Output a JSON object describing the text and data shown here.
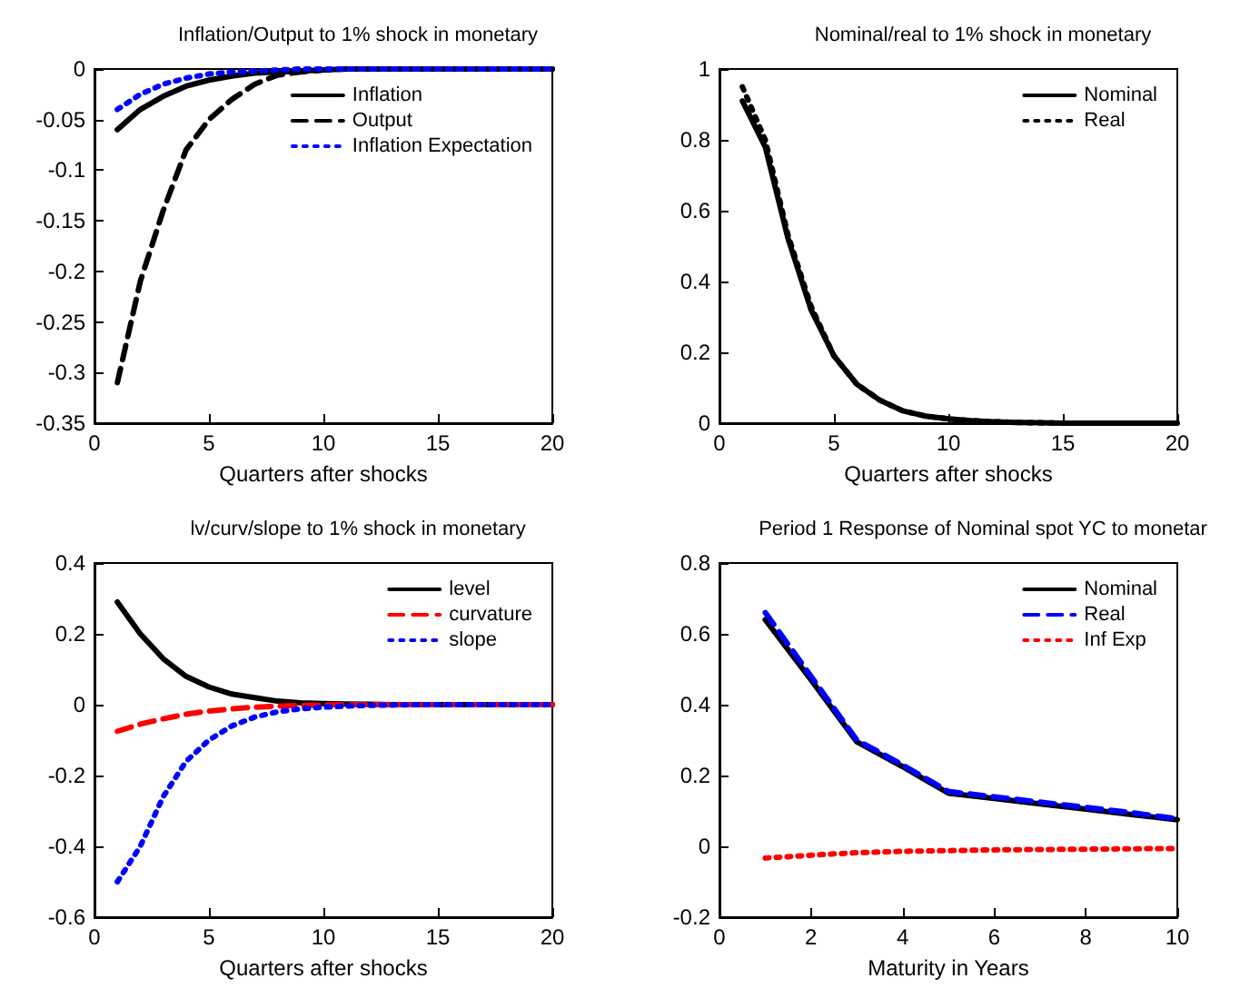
{
  "chart_data": [
    {
      "type": "line",
      "title": "Inflation/Output to 1% shock in monetary",
      "xlabel": "Quarters after shocks",
      "x": [
        1,
        2,
        3,
        4,
        5,
        6,
        7,
        8,
        9,
        10,
        11,
        12,
        13,
        14,
        15,
        16,
        17,
        18,
        19,
        20
      ],
      "xlim": [
        0,
        20
      ],
      "xticks": [
        0,
        5,
        10,
        15,
        20
      ],
      "ylim": [
        -0.35,
        0
      ],
      "yticks": [
        -0.35,
        -0.3,
        -0.25,
        -0.2,
        -0.15,
        -0.1,
        -0.05,
        0
      ],
      "grid": false,
      "legend": "top right",
      "marker": "none",
      "series": [
        {
          "name": "Inflation",
          "color": "#000000",
          "line_style": "solid",
          "values": [
            -0.06,
            -0.04,
            -0.027,
            -0.017,
            -0.011,
            -0.007,
            -0.004,
            -0.003,
            -0.002,
            -0.001,
            0,
            0,
            0,
            0,
            0,
            0,
            0,
            0,
            0,
            0
          ]
        },
        {
          "name": "Output",
          "color": "#000000",
          "line_style": "dashed",
          "values": [
            -0.31,
            -0.21,
            -0.14,
            -0.08,
            -0.05,
            -0.03,
            -0.015,
            -0.006,
            -0.003,
            -0.001,
            0,
            0,
            0,
            0,
            0,
            0,
            0,
            0,
            0,
            0
          ]
        },
        {
          "name": "Inflation Expectation",
          "color": "#0000ff",
          "line_style": "dotted",
          "values": [
            -0.04,
            -0.025,
            -0.015,
            -0.009,
            -0.005,
            -0.003,
            -0.002,
            -0.001,
            0,
            0,
            0,
            0,
            0,
            0,
            0,
            0,
            0,
            0,
            0,
            0
          ]
        }
      ]
    },
    {
      "type": "line",
      "title": "Nominal/real to 1% shock in monetary",
      "xlabel": "Quarters after shocks",
      "x": [
        1,
        2,
        3,
        4,
        5,
        6,
        7,
        8,
        9,
        10,
        11,
        12,
        13,
        14,
        15,
        16,
        17,
        18,
        19,
        20
      ],
      "xlim": [
        0,
        20
      ],
      "xticks": [
        0,
        5,
        10,
        15,
        20
      ],
      "ylim": [
        0,
        1
      ],
      "yticks": [
        0,
        0.2,
        0.4,
        0.6,
        0.8,
        1
      ],
      "grid": false,
      "legend": "top right",
      "marker": "none",
      "series": [
        {
          "name": "Nominal",
          "color": "#000000",
          "line_style": "solid",
          "values": [
            0.91,
            0.78,
            0.52,
            0.32,
            0.19,
            0.11,
            0.065,
            0.035,
            0.02,
            0.012,
            0.007,
            0.004,
            0.002,
            0.001,
            0,
            0,
            0,
            0,
            0,
            0
          ]
        },
        {
          "name": "Real",
          "color": "#000000",
          "line_style": "dotted",
          "values": [
            0.95,
            0.8,
            0.53,
            0.33,
            0.19,
            0.11,
            0.065,
            0.035,
            0.02,
            0.012,
            0.007,
            0.004,
            0.002,
            0.001,
            0,
            0,
            0,
            0,
            0,
            0
          ]
        }
      ]
    },
    {
      "type": "line",
      "title": "lv/curv/slope to 1% shock in monetary",
      "xlabel": "Quarters after shocks",
      "x": [
        1,
        2,
        3,
        4,
        5,
        6,
        7,
        8,
        9,
        10,
        11,
        12,
        13,
        14,
        15,
        16,
        17,
        18,
        19,
        20
      ],
      "xlim": [
        0,
        20
      ],
      "xticks": [
        0,
        5,
        10,
        15,
        20
      ],
      "ylim": [
        -0.6,
        0.4
      ],
      "yticks": [
        -0.6,
        -0.4,
        -0.2,
        0,
        0.2,
        0.4
      ],
      "grid": false,
      "legend": "top right",
      "marker": "none",
      "series": [
        {
          "name": "level",
          "color": "#000000",
          "line_style": "solid",
          "values": [
            0.29,
            0.2,
            0.13,
            0.08,
            0.05,
            0.03,
            0.02,
            0.01,
            0.005,
            0.003,
            0.002,
            0.001,
            0,
            0,
            0,
            0,
            0,
            0,
            0,
            0
          ]
        },
        {
          "name": "curvature",
          "color": "#ff0000",
          "line_style": "dashed",
          "values": [
            -0.075,
            -0.055,
            -0.04,
            -0.027,
            -0.018,
            -0.012,
            -0.007,
            -0.004,
            -0.002,
            -0.001,
            0,
            0,
            0,
            0,
            0,
            0,
            0,
            0,
            0,
            0
          ]
        },
        {
          "name": "slope",
          "color": "#0000ff",
          "line_style": "dotted",
          "values": [
            -0.5,
            -0.4,
            -0.26,
            -0.16,
            -0.1,
            -0.06,
            -0.035,
            -0.02,
            -0.012,
            -0.007,
            -0.004,
            -0.002,
            -0.001,
            0,
            0,
            0,
            0,
            0,
            0,
            0
          ]
        }
      ]
    },
    {
      "type": "line",
      "title": "Period 1 Response of Nominal spot YC to monetar",
      "xlabel": "Maturity in Years",
      "x": [
        1,
        2,
        3,
        4,
        5,
        6,
        7,
        8,
        9,
        10
      ],
      "xlim": [
        0,
        10
      ],
      "xticks": [
        0,
        2,
        4,
        6,
        8,
        10
      ],
      "ylim": [
        -0.2,
        0.8
      ],
      "yticks": [
        -0.2,
        0,
        0.2,
        0.4,
        0.6,
        0.8
      ],
      "grid": false,
      "legend": "top right",
      "marker": "none",
      "series": [
        {
          "name": "Nominal",
          "color": "#000000",
          "line_style": "solid",
          "values": [
            0.64,
            0.47,
            0.295,
            0.225,
            0.15,
            0.135,
            0.12,
            0.105,
            0.09,
            0.075
          ]
        },
        {
          "name": "Real",
          "color": "#0000ff",
          "line_style": "dashed",
          "values": [
            0.66,
            0.48,
            0.3,
            0.23,
            0.155,
            0.14,
            0.125,
            0.11,
            0.095,
            0.078
          ]
        },
        {
          "name": "Inf Exp",
          "color": "#ff0000",
          "line_style": "dotted",
          "values": [
            -0.033,
            -0.025,
            -0.018,
            -0.014,
            -0.012,
            -0.01,
            -0.009,
            -0.008,
            -0.007,
            -0.006
          ]
        }
      ]
    }
  ]
}
